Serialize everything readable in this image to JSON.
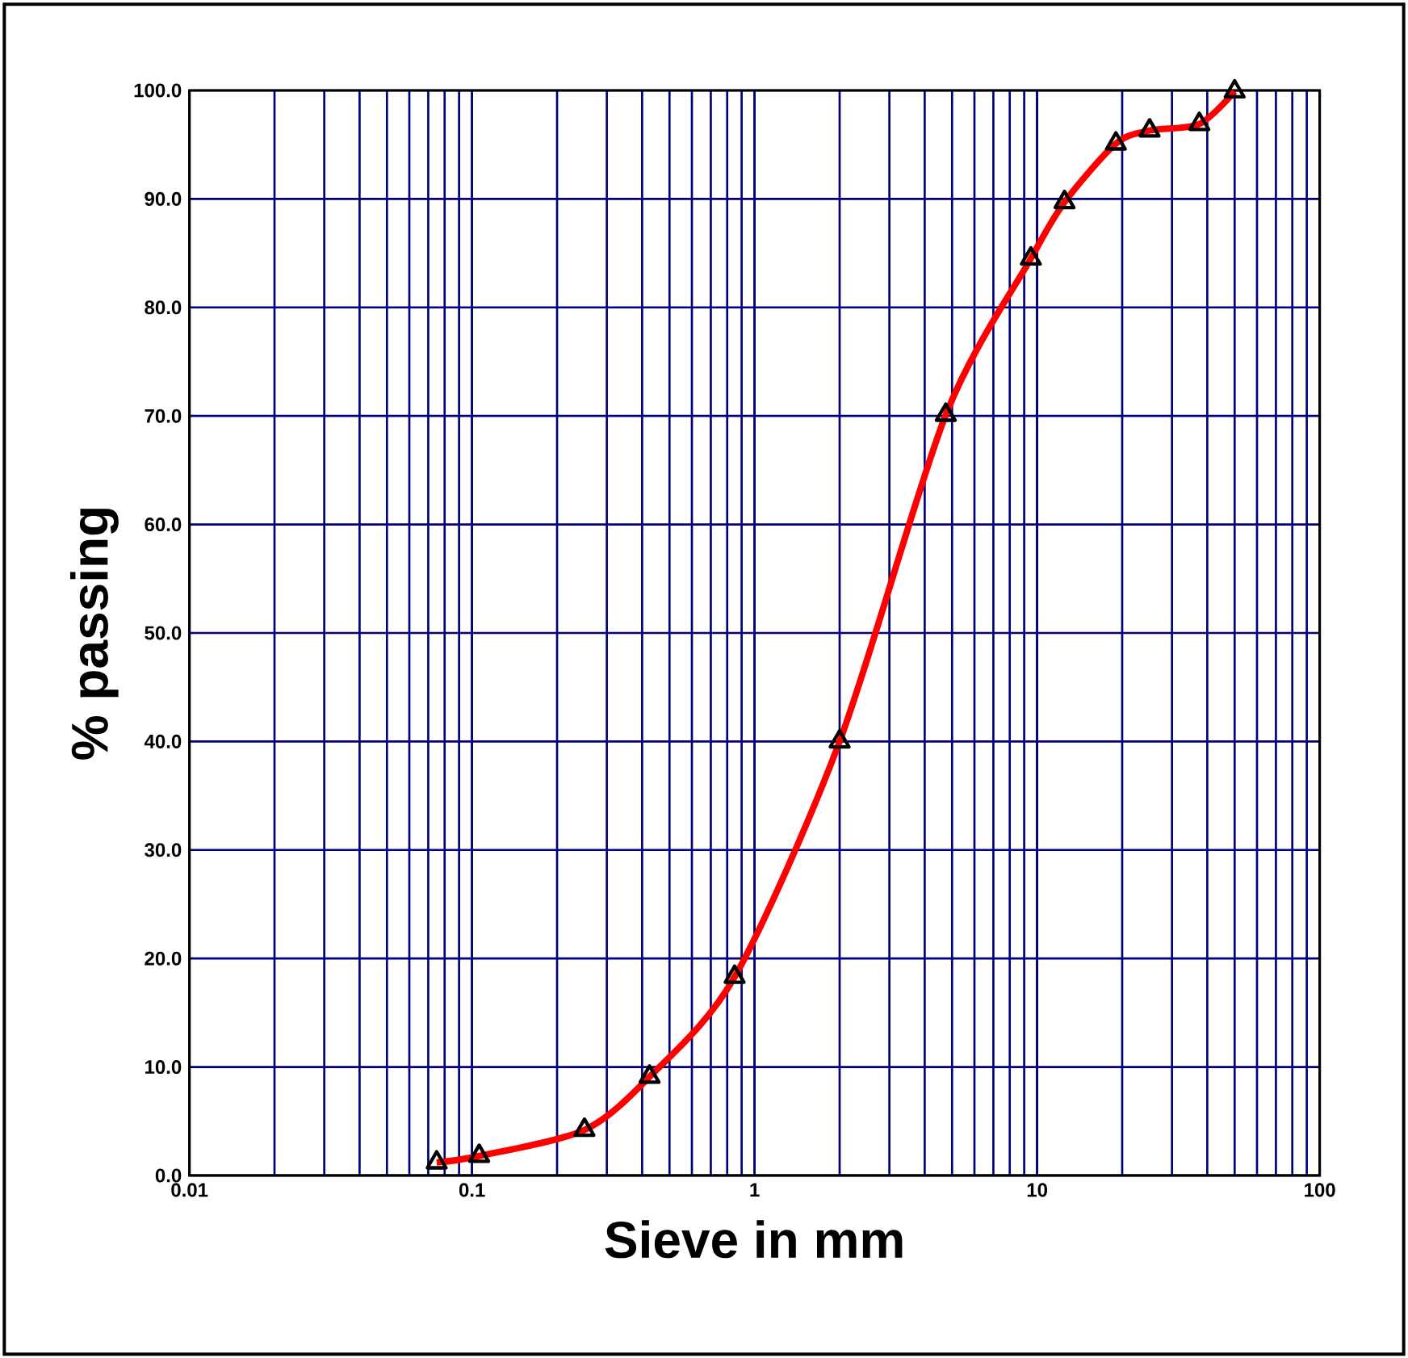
{
  "chart_data": {
    "type": "line",
    "xlabel": "Sieve in mm",
    "ylabel": "% passing",
    "log": "x",
    "grid": true,
    "marker": "triangle",
    "line_style": "solid",
    "xlim": [
      0.01,
      100
    ],
    "xticks": [
      0.01,
      0.1,
      1,
      10,
      100
    ],
    "ylim": [
      0,
      100
    ],
    "yticks": [
      {
        "value": 0,
        "label": "0.0"
      },
      {
        "value": 10,
        "label": "10.0"
      },
      {
        "value": 20,
        "label": "20.0"
      },
      {
        "value": 30,
        "label": "30.0"
      },
      {
        "value": 40,
        "label": "40.0"
      },
      {
        "value": 50,
        "label": "50.0"
      },
      {
        "value": 60,
        "label": "60.0"
      },
      {
        "value": 70,
        "label": "70.0"
      },
      {
        "value": 80,
        "label": "80.0"
      },
      {
        "value": 90,
        "label": "90.0"
      },
      {
        "value": 100,
        "label": "100.0"
      }
    ],
    "series": [
      {
        "color": "#ff0000",
        "x": [
          0.075,
          0.106,
          0.25,
          0.425,
          0.85,
          2,
          4.75,
          9.5,
          12.5,
          19,
          25,
          37.5,
          50
        ],
        "values": [
          1.2,
          1.8,
          4.2,
          9.1,
          18.3,
          40.0,
          70.1,
          84.5,
          89.7,
          95.1,
          96.3,
          96.9,
          99.9
        ]
      }
    ]
  }
}
